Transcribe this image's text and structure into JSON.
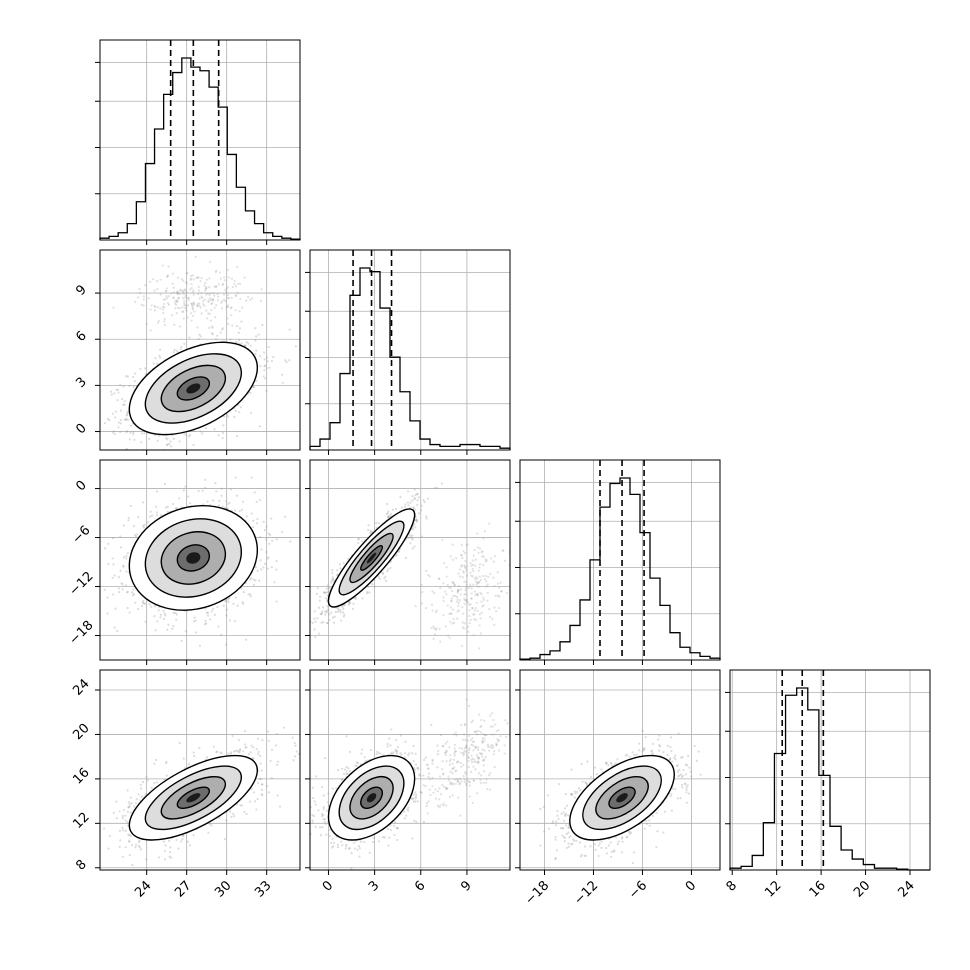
{
  "chart_data": {
    "type": "corner",
    "grid": true,
    "parameters": [
      {
        "range": [
          20.5,
          35.5
        ],
        "ticks": [
          24,
          27,
          30,
          33
        ],
        "tick_labels": [
          "24",
          "27",
          "30",
          "33"
        ],
        "quantiles": [
          25.8,
          27.5,
          29.4
        ],
        "hist": [
          0.01,
          0.02,
          0.04,
          0.09,
          0.21,
          0.42,
          0.61,
          0.8,
          0.92,
          1.0,
          0.95,
          0.93,
          0.84,
          0.73,
          0.47,
          0.29,
          0.16,
          0.09,
          0.04,
          0.02,
          0.01,
          0.005
        ]
      },
      {
        "range": [
          -1.2,
          11.8
        ],
        "ticks": [
          0,
          3,
          6,
          9
        ],
        "tick_labels": [
          "0",
          "3",
          "6",
          "9"
        ],
        "quantiles": [
          1.6,
          2.8,
          4.1
        ],
        "hist": [
          0.02,
          0.06,
          0.15,
          0.42,
          0.85,
          1.0,
          0.98,
          0.78,
          0.51,
          0.32,
          0.16,
          0.06,
          0.03,
          0.02,
          0.02,
          0.03,
          0.03,
          0.02,
          0.02,
          0.01
        ]
      },
      {
        "range": [
          -21,
          3.5
        ],
        "ticks": [
          -18,
          -12,
          -6,
          0
        ],
        "tick_labels": [
          "−18",
          "−12",
          "−6",
          "0"
        ],
        "quantiles": [
          -11.2,
          -8.5,
          -5.8
        ],
        "hist": [
          0.005,
          0.01,
          0.03,
          0.05,
          0.1,
          0.19,
          0.33,
          0.55,
          0.84,
          0.97,
          1.0,
          0.91,
          0.7,
          0.45,
          0.3,
          0.15,
          0.07,
          0.04,
          0.02,
          0.01
        ]
      },
      {
        "range": [
          7.8,
          25.8
        ],
        "ticks": [
          8,
          12,
          16,
          20,
          24
        ],
        "tick_labels": [
          "8",
          "12",
          "16",
          "20",
          "24"
        ],
        "quantiles": [
          12.5,
          14.3,
          16.2
        ],
        "hist": [
          0.01,
          0.02,
          0.08,
          0.26,
          0.64,
          0.96,
          1.0,
          0.88,
          0.52,
          0.24,
          0.11,
          0.06,
          0.03,
          0.01,
          0.01,
          0.005,
          0.0,
          0.0
        ]
      }
    ],
    "pairs": [
      {
        "row": 1,
        "col": 0,
        "mean": [
          27.5,
          2.8
        ],
        "sigma": [
          2.4,
          1.5
        ],
        "rho": 0.45,
        "outlier_cluster": {
          "mean": [
            27.5,
            8.8
          ],
          "sigma": [
            2.0,
            0.9
          ],
          "rho": 0.2
        }
      },
      {
        "row": 2,
        "col": 0,
        "mean": [
          27.5,
          -8.5
        ],
        "sigma": [
          2.4,
          3.2
        ],
        "rho": 0.15
      },
      {
        "row": 2,
        "col": 1,
        "mean": [
          2.8,
          -8.5
        ],
        "sigma": [
          1.4,
          3.0
        ],
        "rho": 0.88,
        "outlier_cluster": {
          "mean": [
            9.0,
            -12.0
          ],
          "sigma": [
            1.2,
            3.0
          ],
          "rho": 0.3
        }
      },
      {
        "row": 3,
        "col": 0,
        "mean": [
          27.5,
          14.3
        ],
        "sigma": [
          2.4,
          1.9
        ],
        "rho": 0.65
      },
      {
        "row": 3,
        "col": 1,
        "mean": [
          2.8,
          14.3
        ],
        "sigma": [
          1.4,
          1.9
        ],
        "rho": 0.45,
        "outlier_cluster": {
          "mean": [
            9.0,
            18.0
          ],
          "sigma": [
            1.3,
            1.9
          ],
          "rho": 0.5
        }
      },
      {
        "row": 3,
        "col": 2,
        "mean": [
          -8.5,
          14.3
        ],
        "sigma": [
          3.2,
          1.9
        ],
        "rho": 0.55
      }
    ]
  }
}
